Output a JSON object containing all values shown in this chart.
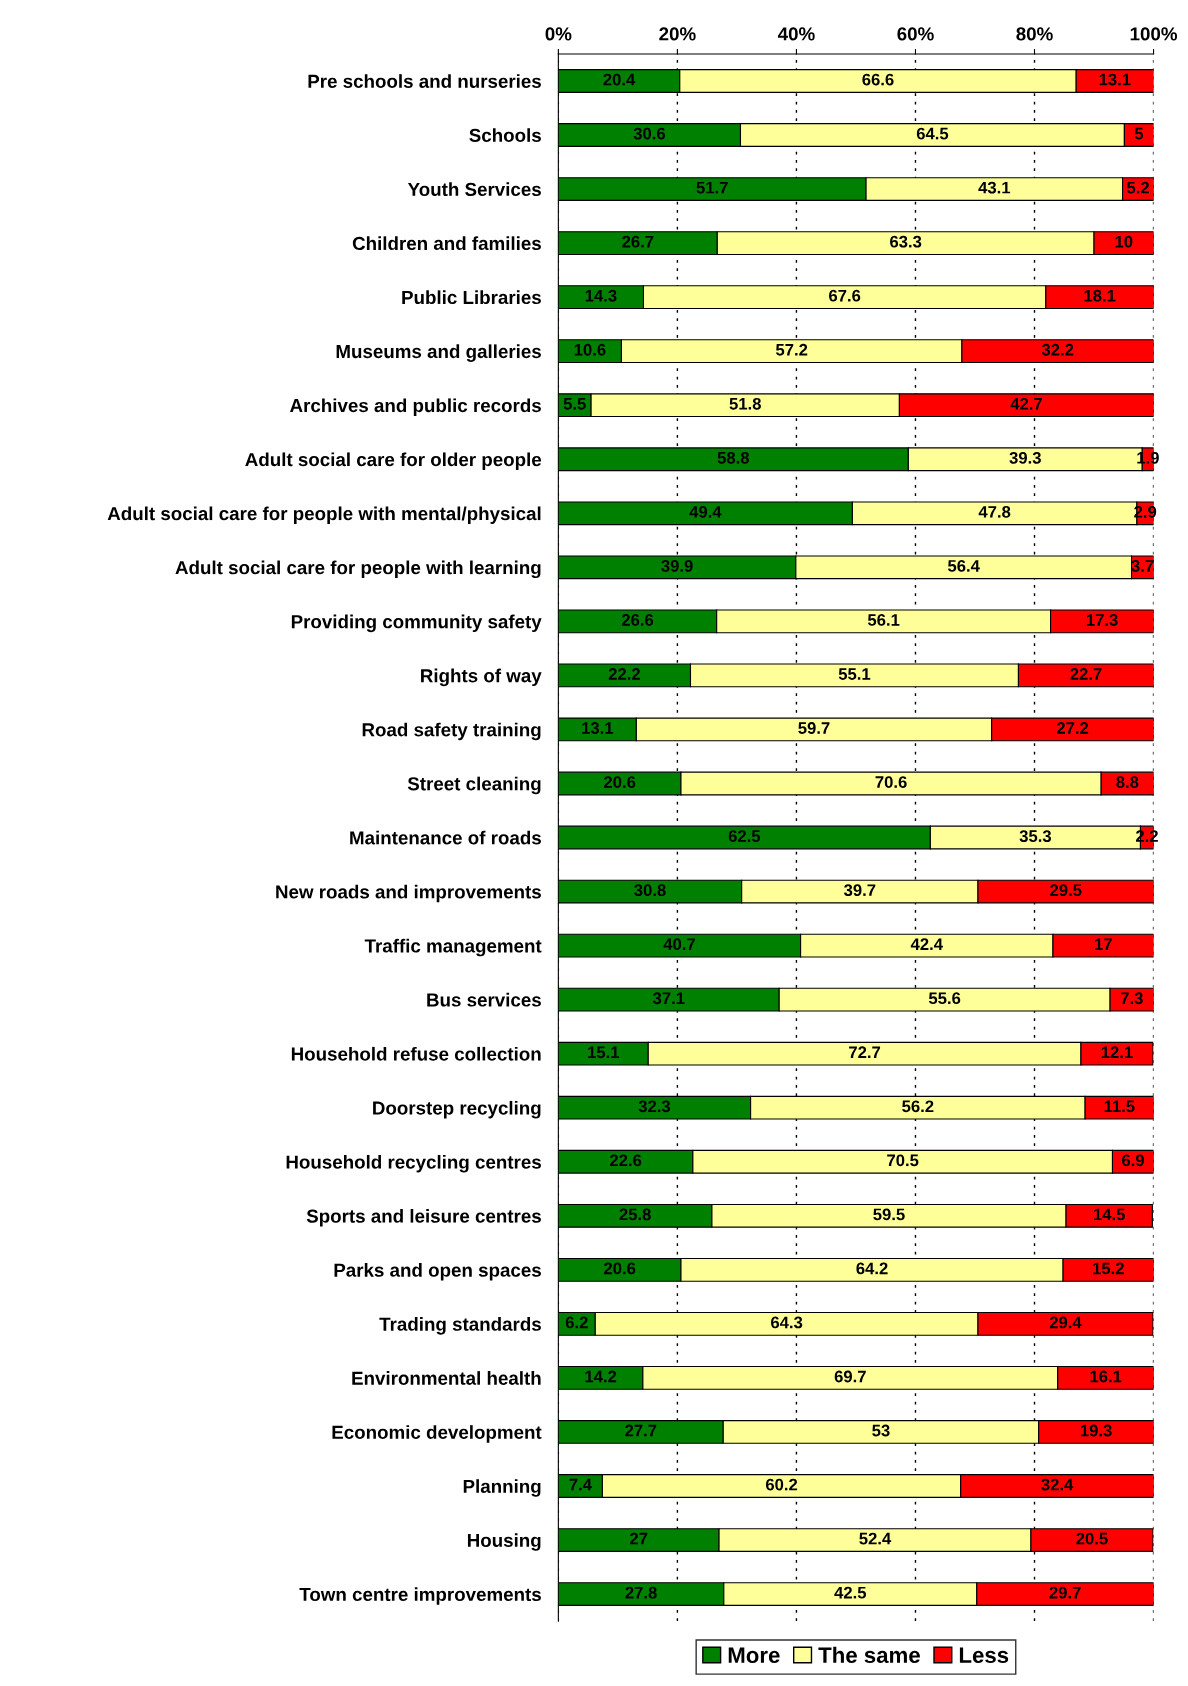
{
  "chart_data": {
    "type": "bar",
    "orientation": "horizontal",
    "stacked": true,
    "data_labels": true,
    "grid": "x",
    "legend": "bottom",
    "categories": [
      "Pre schools and nurseries",
      "Schools",
      "Youth Services",
      "Children and families",
      "Public Libraries",
      "Museums and galleries",
      "Archives and public records",
      "Adult social care for older people",
      "Adult social care for people with mental/physical",
      "Adult social care for people with learning",
      "Providing community safety",
      "Rights of way",
      "Road safety training",
      "Street cleaning",
      "Maintenance of roads",
      "New roads and improvements",
      "Traffic management",
      "Bus services",
      "Household refuse collection",
      "Doorstep recycling",
      "Household recycling centres",
      "Sports and leisure centres",
      "Parks and open spaces",
      "Trading standards",
      "Environmental health",
      "Economic development",
      "Planning",
      "Housing",
      "Town centre improvements"
    ],
    "series": [
      {
        "name": "More",
        "color": "#008000",
        "values": [
          20.4,
          30.6,
          51.7,
          26.7,
          14.3,
          10.6,
          5.5,
          58.8,
          49.4,
          39.9,
          26.6,
          22.2,
          13.1,
          20.6,
          62.5,
          30.8,
          40.7,
          37.1,
          15.1,
          32.3,
          22.6,
          25.8,
          20.6,
          6.2,
          14.2,
          27.7,
          7.4,
          27,
          27.8
        ]
      },
      {
        "name": "The same",
        "color": "#ffff99",
        "values": [
          66.6,
          64.5,
          43.1,
          63.3,
          67.6,
          57.2,
          51.8,
          39.3,
          47.8,
          56.4,
          56.1,
          55.1,
          59.7,
          70.6,
          35.3,
          39.7,
          42.4,
          55.6,
          72.7,
          56.2,
          70.5,
          59.5,
          64.2,
          64.3,
          69.7,
          53,
          60.2,
          52.4,
          42.5
        ]
      },
      {
        "name": "Less",
        "color": "#ff0000",
        "values": [
          13.1,
          5,
          5.2,
          10,
          18.1,
          32.2,
          42.7,
          1.9,
          2.9,
          3.7,
          17.3,
          22.7,
          27.2,
          8.8,
          2.2,
          29.5,
          17,
          7.3,
          12.1,
          11.5,
          6.9,
          14.5,
          15.2,
          29.4,
          16.1,
          19.3,
          32.4,
          20.5,
          29.7
        ]
      }
    ],
    "xlim": [
      0,
      100
    ],
    "xticks": [
      {
        "value": 0,
        "label": "0%"
      },
      {
        "value": 20,
        "label": "20%"
      },
      {
        "value": 40,
        "label": "40%"
      },
      {
        "value": 60,
        "label": "60%"
      },
      {
        "value": 80,
        "label": "80%"
      },
      {
        "value": 100,
        "label": "100%"
      }
    ]
  }
}
